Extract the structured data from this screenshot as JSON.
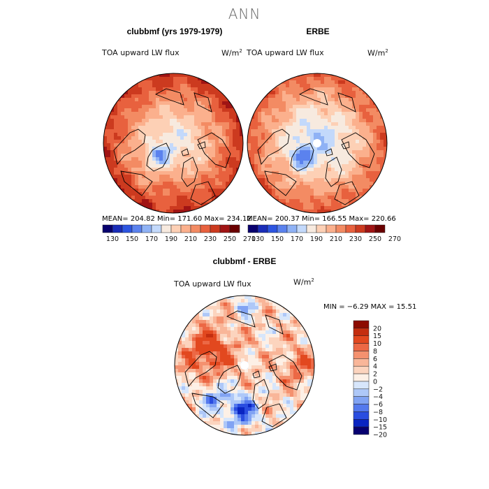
{
  "figure": {
    "title": "ANN"
  },
  "colors": {
    "abs_palette": [
      "#08006e",
      "#1a2db8",
      "#2d55e0",
      "#5b82ee",
      "#8fb2f5",
      "#c3d9fb",
      "#f7eadf",
      "#fdd0b5",
      "#fbb08d",
      "#f38b63",
      "#e8613e",
      "#cc3a1f",
      "#a01414",
      "#6a0000"
    ],
    "diff_palette": [
      "#070070",
      "#0a25c2",
      "#2a4de0",
      "#5479ed",
      "#81a3f3",
      "#aec8f8",
      "#d7e6fb",
      "#fdf0e6",
      "#fcd4be",
      "#f9b699",
      "#f4916f",
      "#ec6845",
      "#e2481f",
      "#c42e10",
      "#8c0b00"
    ],
    "land_outline": "#000000"
  },
  "chart_data": [
    {
      "type": "heatmap",
      "projection": "north-polar-stereographic",
      "title": "clubbmf (yrs 1979-1979)",
      "field_label": "TOA upward LW flux",
      "units_label": "W/m",
      "units_exp": "2",
      "stats": {
        "mean": "204.82",
        "min": "171.60",
        "max": "234.12"
      },
      "stats_text": "MEAN= 204.82   Min= 171.60   Max= 234.12",
      "colorbar_ticks": [
        "130",
        "150",
        "170",
        "190",
        "210",
        "230",
        "250",
        "270"
      ],
      "colorbar_levels": [
        120,
        130,
        140,
        150,
        160,
        170,
        180,
        190,
        200,
        210,
        220,
        230,
        240,
        250,
        260,
        270,
        280
      ],
      "field": {
        "equator_value": 238,
        "pole_value": 182,
        "hole": false
      }
    },
    {
      "type": "heatmap",
      "projection": "north-polar-stereographic",
      "title": "ERBE",
      "field_label": "TOA upward LW flux",
      "units_label": "W/m",
      "units_exp": "2",
      "stats": {
        "mean": "200.37",
        "min": "166.55",
        "max": "220.66"
      },
      "stats_text": "MEAN= 200.37   Min= 166.55   Max= 220.66",
      "colorbar_ticks": [
        "130",
        "150",
        "170",
        "190",
        "210",
        "230",
        "250",
        "270"
      ],
      "colorbar_levels": [
        120,
        130,
        140,
        150,
        160,
        170,
        180,
        190,
        200,
        210,
        220,
        230,
        240,
        250,
        260,
        270,
        280
      ],
      "field": {
        "equator_value": 228,
        "pole_value": 172,
        "hole": true
      }
    },
    {
      "type": "heatmap",
      "projection": "north-polar-stereographic",
      "title": "clubbmf - ERBE",
      "field_label": "TOA upward LW flux",
      "units_label": "W/m",
      "units_exp": "2",
      "stats": {
        "min": "-6.29",
        "max": "15.51"
      },
      "stats_text": "MIN =   −6.29  MAX =   15.51",
      "colorbar_levels": [
        -20,
        -15,
        -10,
        -8,
        -6,
        -4,
        -2,
        0,
        2,
        4,
        6,
        8,
        10,
        15,
        20
      ],
      "colorbar_labels": [
        "20",
        "15",
        "10",
        "8",
        "6",
        "4",
        "2",
        "0",
        "−2",
        "−4",
        "−6",
        "−8",
        "−10",
        "−15",
        "−20"
      ],
      "field": {
        "hole": true
      }
    }
  ]
}
